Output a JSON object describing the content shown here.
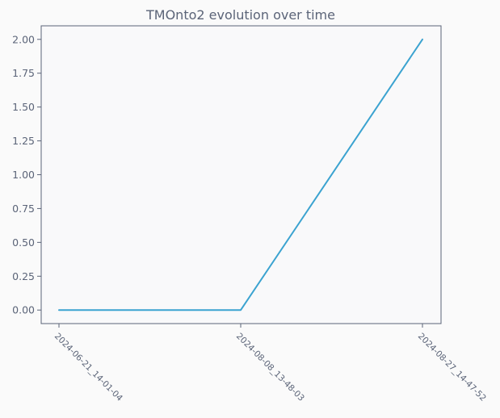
{
  "chart_data": {
    "type": "line",
    "title": "TMOnto2 evolution over time",
    "xlabel": "",
    "ylabel": "",
    "categories": [
      "2024-06-21_14-01-04",
      "2024-08-08_13-48-03",
      "2024-08-27_14-47-52"
    ],
    "series": [
      {
        "values": [
          0,
          0,
          2
        ],
        "color": "#3ba3d0"
      }
    ],
    "ylim": [
      -0.1,
      2.1
    ],
    "yticks": [
      "0.00",
      "0.25",
      "0.50",
      "0.75",
      "1.00",
      "1.25",
      "1.50",
      "1.75",
      "2.00"
    ],
    "grid": false,
    "legend": "none"
  },
  "colors": {
    "background": "#fafafa",
    "plot_area": "#f9f9fa",
    "axis": "#5b6478",
    "text": "#5b6478"
  }
}
